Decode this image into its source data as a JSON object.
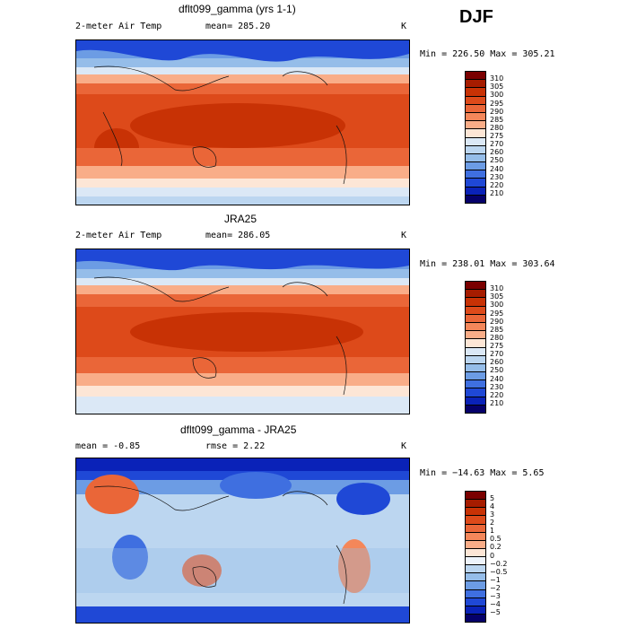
{
  "season": "DJF",
  "panels": [
    {
      "title": "dflt099_gamma (yrs 1-1)",
      "variable": "2-meter Air Temp",
      "mean_text": "mean= 285.20",
      "units": "K",
      "minmax": "Min = 226.50 Max = 305.21",
      "levels": [
        "310",
        "305",
        "300",
        "295",
        "290",
        "285",
        "280",
        "275",
        "270",
        "260",
        "250",
        "240",
        "230",
        "220",
        "210"
      ],
      "colors": [
        "#7a0000",
        "#a61c00",
        "#c83205",
        "#dd4a1a",
        "#ea6638",
        "#f4875a",
        "#f9ad88",
        "#fde6d6",
        "#dbe8f6",
        "#bcd6f0",
        "#95bde9",
        "#6c9ce4",
        "#3f6fe0",
        "#1f48d6",
        "#0a22b8",
        "#05006a"
      ]
    },
    {
      "title": "JRA25",
      "variable": "2-meter Air Temp",
      "mean_text": "mean= 286.05",
      "units": "K",
      "minmax": "Min = 238.01 Max = 303.64",
      "levels": [
        "310",
        "305",
        "300",
        "295",
        "290",
        "285",
        "280",
        "275",
        "270",
        "260",
        "250",
        "240",
        "230",
        "220",
        "210"
      ],
      "colors": [
        "#7a0000",
        "#a61c00",
        "#c83205",
        "#dd4a1a",
        "#ea6638",
        "#f4875a",
        "#f9ad88",
        "#fde6d6",
        "#dbe8f6",
        "#bcd6f0",
        "#95bde9",
        "#6c9ce4",
        "#3f6fe0",
        "#1f48d6",
        "#0a22b8",
        "#05006a"
      ]
    },
    {
      "title": "dflt099_gamma - JRA25",
      "mean_text": "mean =   -0.85",
      "rmse_text": "rmse =    2.22",
      "units": "K",
      "minmax": "Min = −14.63 Max =    5.65",
      "levels": [
        "5",
        "4",
        "3",
        "2",
        "1",
        "0.5",
        "0.2",
        "0",
        "−0.2",
        "−0.5",
        "−1",
        "−2",
        "−3",
        "−4",
        "−5"
      ],
      "colors": [
        "#7a0000",
        "#a61c00",
        "#c83205",
        "#dd4a1a",
        "#ea6638",
        "#f4875a",
        "#f9ad88",
        "#fde6d6",
        "#eef4fb",
        "#bcd6f0",
        "#95bde9",
        "#6c9ce4",
        "#3f6fe0",
        "#1f48d6",
        "#0a22b8",
        "#05006a"
      ]
    }
  ]
}
